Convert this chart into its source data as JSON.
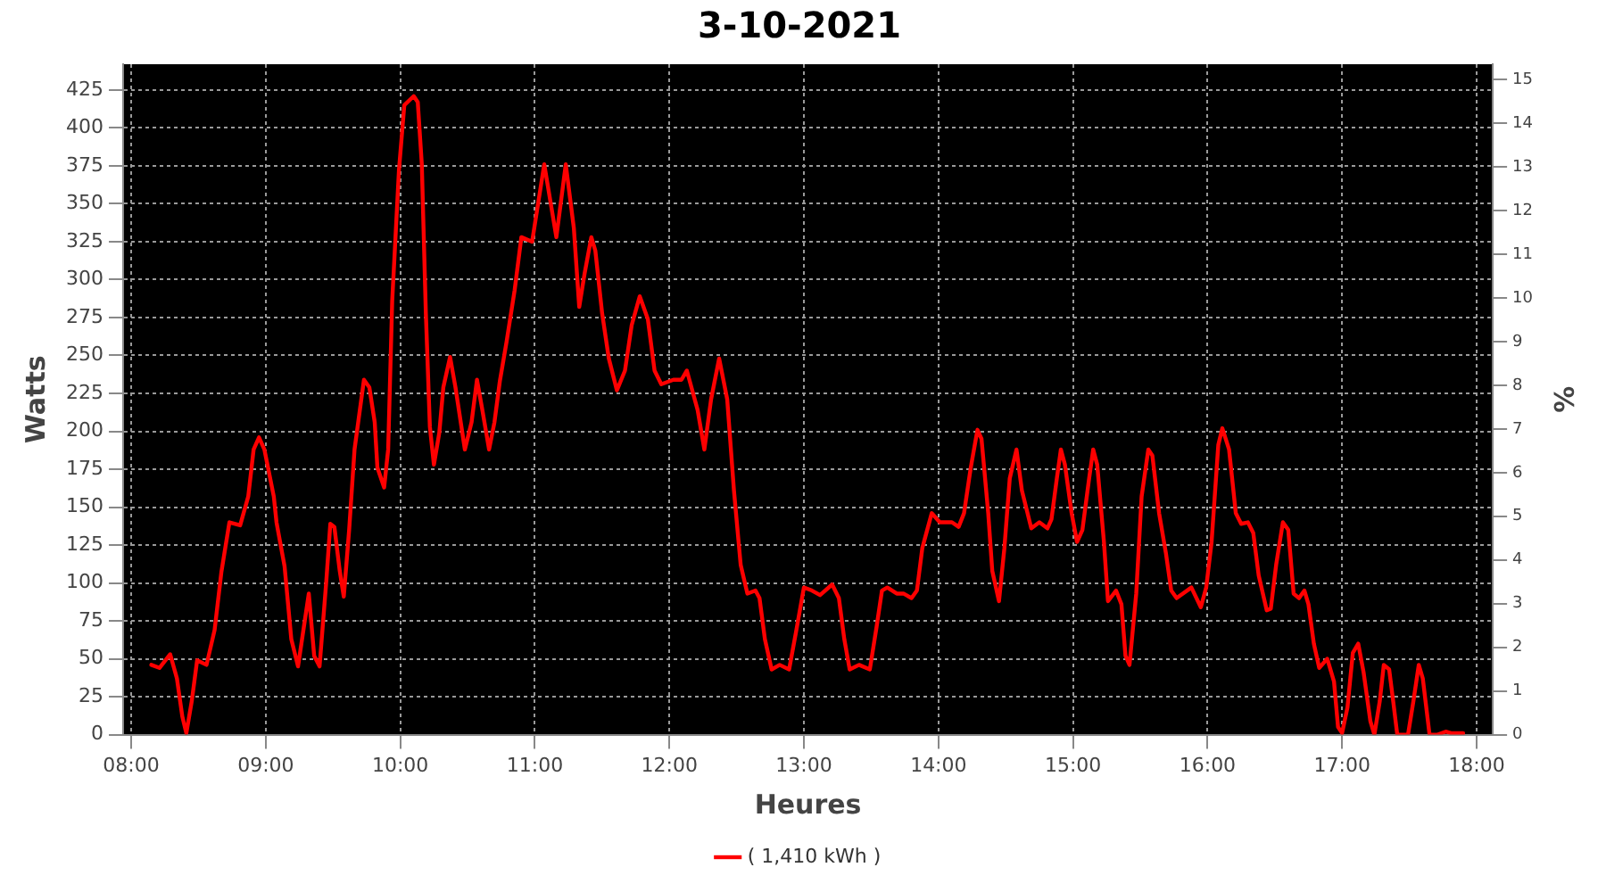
{
  "chart_data": {
    "type": "line",
    "title": "3-10-2021",
    "xlabel": "Heures",
    "ylabel": "Watts",
    "y2label": "%",
    "xlim": [
      7.94,
      18.12
    ],
    "xticks": [
      {
        "value": 8,
        "label": "08:00"
      },
      {
        "value": 9,
        "label": "09:00"
      },
      {
        "value": 10,
        "label": "10:00"
      },
      {
        "value": 11,
        "label": "11:00"
      },
      {
        "value": 12,
        "label": "12:00"
      },
      {
        "value": 13,
        "label": "13:00"
      },
      {
        "value": 14,
        "label": "14:00"
      },
      {
        "value": 15,
        "label": "15:00"
      },
      {
        "value": 16,
        "label": "16:00"
      },
      {
        "value": 17,
        "label": "17:00"
      },
      {
        "value": 18,
        "label": "18:00"
      }
    ],
    "ylim": [
      0,
      442
    ],
    "yticks": [
      0,
      25,
      50,
      75,
      100,
      125,
      150,
      175,
      200,
      225,
      250,
      275,
      300,
      325,
      350,
      375,
      400,
      425
    ],
    "y2lim": [
      0,
      15.35
    ],
    "y2ticks": [
      0,
      1,
      2,
      3,
      4,
      5,
      6,
      7,
      8,
      9,
      10,
      11,
      12,
      13,
      14,
      15
    ],
    "grid": true,
    "legend": "bottom",
    "marker": "none",
    "line_style": "solid",
    "series": [
      {
        "name": "( 1,410 kWh )",
        "color": "#ff0000",
        "x": [
          8.15,
          8.21,
          8.29,
          8.34,
          8.38,
          8.41,
          8.45,
          8.49,
          8.56,
          8.62,
          8.67,
          8.73,
          8.81,
          8.87,
          8.91,
          8.95,
          8.99,
          9.06,
          9.08,
          9.14,
          9.19,
          9.24,
          9.29,
          9.32,
          9.36,
          9.4,
          9.45,
          9.48,
          9.51,
          9.55,
          9.58,
          9.62,
          9.66,
          9.73,
          9.77,
          9.81,
          9.83,
          9.88,
          9.91,
          9.94,
          9.99,
          10.03,
          10.1,
          10.13,
          10.16,
          10.19,
          10.22,
          10.25,
          10.29,
          10.32,
          10.37,
          10.41,
          10.48,
          10.53,
          10.57,
          10.61,
          10.66,
          10.7,
          10.74,
          10.79,
          10.85,
          10.9,
          10.98,
          11.07,
          11.16,
          11.23,
          11.29,
          11.33,
          11.37,
          11.42,
          11.45,
          11.5,
          11.55,
          11.61,
          11.67,
          11.72,
          11.78,
          11.84,
          11.89,
          11.94,
          12.03,
          12.09,
          12.13,
          12.21,
          12.26,
          12.31,
          12.37,
          12.43,
          12.48,
          12.53,
          12.58,
          12.64,
          12.67,
          12.71,
          12.76,
          12.82,
          12.89,
          12.94,
          13.0,
          13.06,
          13.12,
          13.21,
          13.26,
          13.3,
          13.34,
          13.41,
          13.49,
          13.54,
          13.58,
          13.62,
          13.69,
          13.74,
          13.8,
          13.84,
          13.88,
          13.95,
          14.01,
          14.1,
          14.15,
          14.19,
          14.24,
          14.29,
          14.32,
          14.37,
          14.4,
          14.45,
          14.49,
          14.53,
          14.58,
          14.62,
          14.69,
          14.75,
          14.81,
          14.84,
          14.88,
          14.91,
          14.94,
          14.99,
          15.03,
          15.07,
          15.12,
          15.15,
          15.18,
          15.23,
          15.26,
          15.32,
          15.36,
          15.39,
          15.42,
          15.47,
          15.51,
          15.56,
          15.59,
          15.64,
          15.69,
          15.73,
          15.77,
          15.88,
          15.95,
          15.99,
          16.03,
          16.08,
          16.11,
          16.16,
          16.21,
          16.25,
          16.3,
          16.34,
          16.38,
          16.44,
          16.47,
          16.51,
          16.56,
          16.6,
          16.64,
          16.68,
          16.72,
          16.75,
          16.79,
          16.83,
          16.89,
          16.94,
          16.97,
          17.0,
          17.04,
          17.08,
          17.12,
          17.16,
          17.21,
          17.24,
          17.28,
          17.31,
          17.35,
          17.38,
          17.41,
          17.49,
          17.53,
          17.57,
          17.6,
          17.65,
          17.71,
          17.77,
          17.81,
          17.9
        ],
        "values": [
          46,
          44,
          53,
          37,
          12,
          1,
          22,
          49,
          46,
          69,
          107,
          140,
          138,
          157,
          188,
          196,
          188,
          157,
          140,
          111,
          63,
          45,
          75,
          93,
          52,
          45,
          101,
          139,
          137,
          108,
          91,
          135,
          188,
          234,
          229,
          206,
          176,
          163,
          188,
          286,
          372,
          415,
          421,
          417,
          376,
          278,
          203,
          178,
          199,
          229,
          249,
          229,
          188,
          206,
          234,
          214,
          188,
          206,
          233,
          259,
          293,
          328,
          325,
          376,
          328,
          376,
          334,
          282,
          304,
          328,
          319,
          278,
          248,
          227,
          240,
          270,
          289,
          274,
          240,
          231,
          234,
          234,
          240,
          214,
          188,
          221,
          248,
          221,
          161,
          112,
          93,
          95,
          90,
          63,
          43,
          46,
          43,
          67,
          97,
          95,
          92,
          99,
          90,
          63,
          43,
          46,
          43,
          71,
          95,
          97,
          93,
          93,
          90,
          95,
          123,
          146,
          140,
          140,
          137,
          146,
          176,
          201,
          195,
          146,
          108,
          88,
          123,
          169,
          188,
          161,
          136,
          140,
          136,
          142,
          169,
          188,
          178,
          146,
          127,
          135,
          169,
          188,
          178,
          127,
          88,
          95,
          86,
          52,
          46,
          93,
          157,
          188,
          184,
          146,
          120,
          95,
          90,
          97,
          84,
          97,
          127,
          191,
          202,
          188,
          146,
          139,
          140,
          133,
          105,
          82,
          83,
          112,
          140,
          135,
          93,
          90,
          95,
          86,
          60,
          44,
          50,
          35,
          5,
          1,
          18,
          54,
          60,
          41,
          9,
          0,
          22,
          46,
          43,
          22,
          0,
          0,
          22,
          46,
          37,
          0,
          0,
          2,
          1,
          1
        ]
      }
    ]
  }
}
